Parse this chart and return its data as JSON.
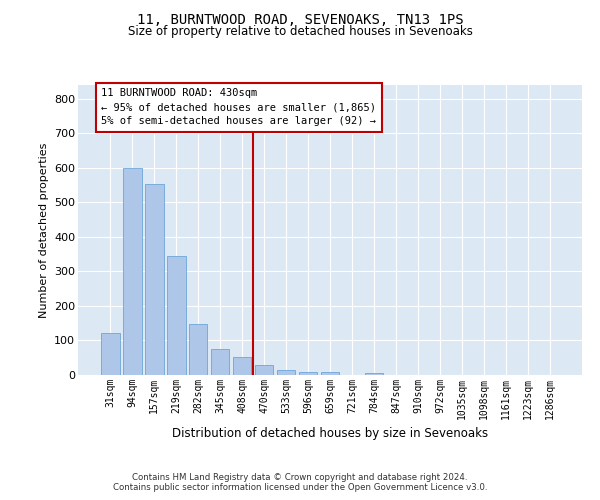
{
  "title": "11, BURNTWOOD ROAD, SEVENOAKS, TN13 1PS",
  "subtitle": "Size of property relative to detached houses in Sevenoaks",
  "xlabel": "Distribution of detached houses by size in Sevenoaks",
  "ylabel": "Number of detached properties",
  "categories": [
    "31sqm",
    "94sqm",
    "157sqm",
    "219sqm",
    "282sqm",
    "345sqm",
    "408sqm",
    "470sqm",
    "533sqm",
    "596sqm",
    "659sqm",
    "721sqm",
    "784sqm",
    "847sqm",
    "910sqm",
    "972sqm",
    "1035sqm",
    "1098sqm",
    "1161sqm",
    "1223sqm",
    "1286sqm"
  ],
  "values": [
    122,
    600,
    553,
    345,
    147,
    74,
    53,
    30,
    15,
    10,
    10,
    0,
    7,
    0,
    0,
    0,
    0,
    0,
    0,
    0,
    0
  ],
  "bar_color": "#aec6e8",
  "bar_edgecolor": "#5b9bd5",
  "vline_x": 6.5,
  "vline_color": "#c00000",
  "annotation_text": "11 BURNTWOOD ROAD: 430sqm\n← 95% of detached houses are smaller (1,865)\n5% of semi-detached houses are larger (92) →",
  "annotation_box_color": "#ffffff",
  "annotation_box_edgecolor": "#c00000",
  "ylim": [
    0,
    840
  ],
  "yticks": [
    0,
    100,
    200,
    300,
    400,
    500,
    600,
    700,
    800
  ],
  "background_color": "#dce9f5",
  "footer": "Contains HM Land Registry data © Crown copyright and database right 2024.\nContains public sector information licensed under the Open Government Licence v3.0."
}
